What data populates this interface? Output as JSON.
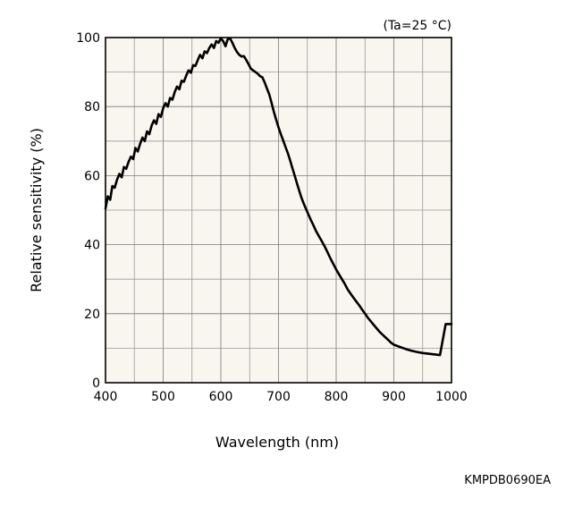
{
  "chart_data": {
    "type": "line",
    "title": "",
    "condition_note": "(Ta=25 °C)",
    "xlabel": "Wavelength (nm)",
    "ylabel": "Relative sensitivity (%)",
    "xlim": [
      400,
      1000
    ],
    "ylim": [
      0,
      100
    ],
    "x_ticks": [
      "400",
      "500",
      "600",
      "700",
      "800",
      "900",
      "1000"
    ],
    "y_ticks": [
      "0",
      "20",
      "40",
      "60",
      "80",
      "100"
    ],
    "grid": true,
    "legend": "none",
    "background_color": "#f8f6ee",
    "line_color": "#000000",
    "series": [
      {
        "x": [
          400,
          404,
          408,
          412,
          416,
          420,
          424,
          428,
          432,
          436,
          440,
          444,
          448,
          452,
          456,
          460,
          464,
          468,
          472,
          476,
          480,
          484,
          488,
          492,
          496,
          500,
          504,
          508,
          512,
          516,
          520,
          524,
          528,
          532,
          536,
          540,
          544,
          548,
          552,
          556,
          560,
          564,
          568,
          572,
          576,
          580,
          584,
          588,
          592,
          596,
          600,
          604,
          608,
          612,
          616,
          620,
          624,
          628,
          632,
          636,
          640,
          644,
          648,
          652,
          656,
          660,
          664,
          668,
          672,
          676,
          680,
          684,
          688,
          692,
          696,
          700,
          704,
          708,
          712,
          716,
          720,
          724,
          728,
          732,
          736,
          740,
          744,
          748,
          752,
          756,
          760,
          765,
          770,
          775,
          780,
          785,
          790,
          795,
          800,
          805,
          810,
          815,
          820,
          825,
          830,
          835,
          840,
          845,
          850,
          855,
          860,
          865,
          870,
          875,
          880,
          885,
          890,
          895,
          900,
          910,
          920,
          930,
          940,
          950,
          960,
          970,
          980,
          990,
          1000
        ],
        "values": [
          50.5,
          54.0,
          53.0,
          57.0,
          56.5,
          58.8,
          60.5,
          59.5,
          62.5,
          62.0,
          64.0,
          65.5,
          64.8,
          68.0,
          67.0,
          69.2,
          71.0,
          70.0,
          72.8,
          72.0,
          74.5,
          76.0,
          75.0,
          77.8,
          77.0,
          79.5,
          81.0,
          80.0,
          82.5,
          82.0,
          84.2,
          85.8,
          85.0,
          87.5,
          87.2,
          89.0,
          90.5,
          89.8,
          92.0,
          91.8,
          93.5,
          95.0,
          94.0,
          96.0,
          95.5,
          97.0,
          98.0,
          97.0,
          99.0,
          98.5,
          99.8,
          99.0,
          97.5,
          99.5,
          99.8,
          98.5,
          97.0,
          95.8,
          95.0,
          94.5,
          94.6,
          93.5,
          92.3,
          91.0,
          90.5,
          90.0,
          89.5,
          88.8,
          88.5,
          87.0,
          85.2,
          83.5,
          81.0,
          78.5,
          76.2,
          74.0,
          72.0,
          70.2,
          68.4,
          66.6,
          64.5,
          62.2,
          60.0,
          57.8,
          55.6,
          53.5,
          51.8,
          50.2,
          48.7,
          47.2,
          45.8,
          44.0,
          42.5,
          41.0,
          39.5,
          37.8,
          36.0,
          34.4,
          32.8,
          31.4,
          30.0,
          28.6,
          27.0,
          25.8,
          24.6,
          23.5,
          22.4,
          21.2,
          20.0,
          18.8,
          17.8,
          16.8,
          15.8,
          14.8,
          14.0,
          13.2,
          12.4,
          11.6,
          11.0,
          10.4,
          9.8,
          9.3,
          8.9,
          8.6,
          8.4,
          8.2,
          8.0,
          17.0,
          17.0
        ],
        "note": "values read from the curve"
      }
    ]
  },
  "document_code": "KMPDB0690EA"
}
